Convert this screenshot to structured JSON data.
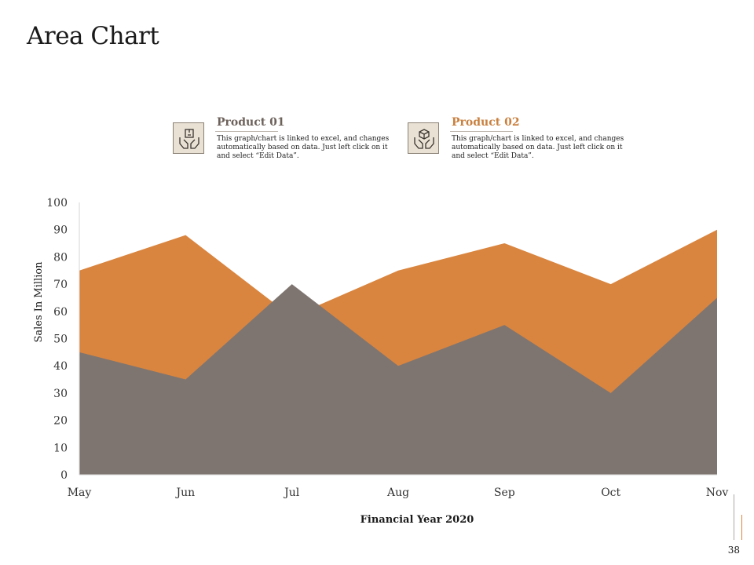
{
  "page": {
    "title": "Area Chart",
    "page_number": "38"
  },
  "legend": [
    {
      "name": "Product 01",
      "description": "This graph/chart is linked to excel, and changes automatically based on data. Just left click on it and select “Edit Data”.",
      "icon": "hands-holding-box-icon",
      "color": "#7f7570"
    },
    {
      "name": "Product 02",
      "description": "This graph/chart is linked to excel, and changes automatically based on data. Just left click on it and select “Edit Data”.",
      "icon": "hands-holding-cube-icon",
      "color": "#d9853f"
    }
  ],
  "colors": {
    "product01": "#7f7570",
    "product02": "#d9853f",
    "product02_title": "#c9803f",
    "axis": "#d6d6d6",
    "text": "#1a1a1a"
  },
  "chart_data": {
    "type": "area",
    "title": "",
    "categories": [
      "May",
      "Jun",
      "Jul",
      "Aug",
      "Sep",
      "Oct",
      "Nov"
    ],
    "series": [
      {
        "name": "Product 01",
        "values": [
          45,
          35,
          70,
          40,
          55,
          30,
          65
        ],
        "color": "#7f7570"
      },
      {
        "name": "Product 02",
        "values": [
          75,
          88,
          58,
          75,
          85,
          70,
          90
        ],
        "color": "#d9853f"
      }
    ],
    "xlabel": "Financial Year 2020",
    "ylabel": "Sales In Million",
    "ylim": [
      0,
      100
    ],
    "yticks": [
      0,
      10,
      20,
      30,
      40,
      50,
      60,
      70,
      80,
      90,
      100
    ],
    "grid": false,
    "legend_position": "top"
  }
}
